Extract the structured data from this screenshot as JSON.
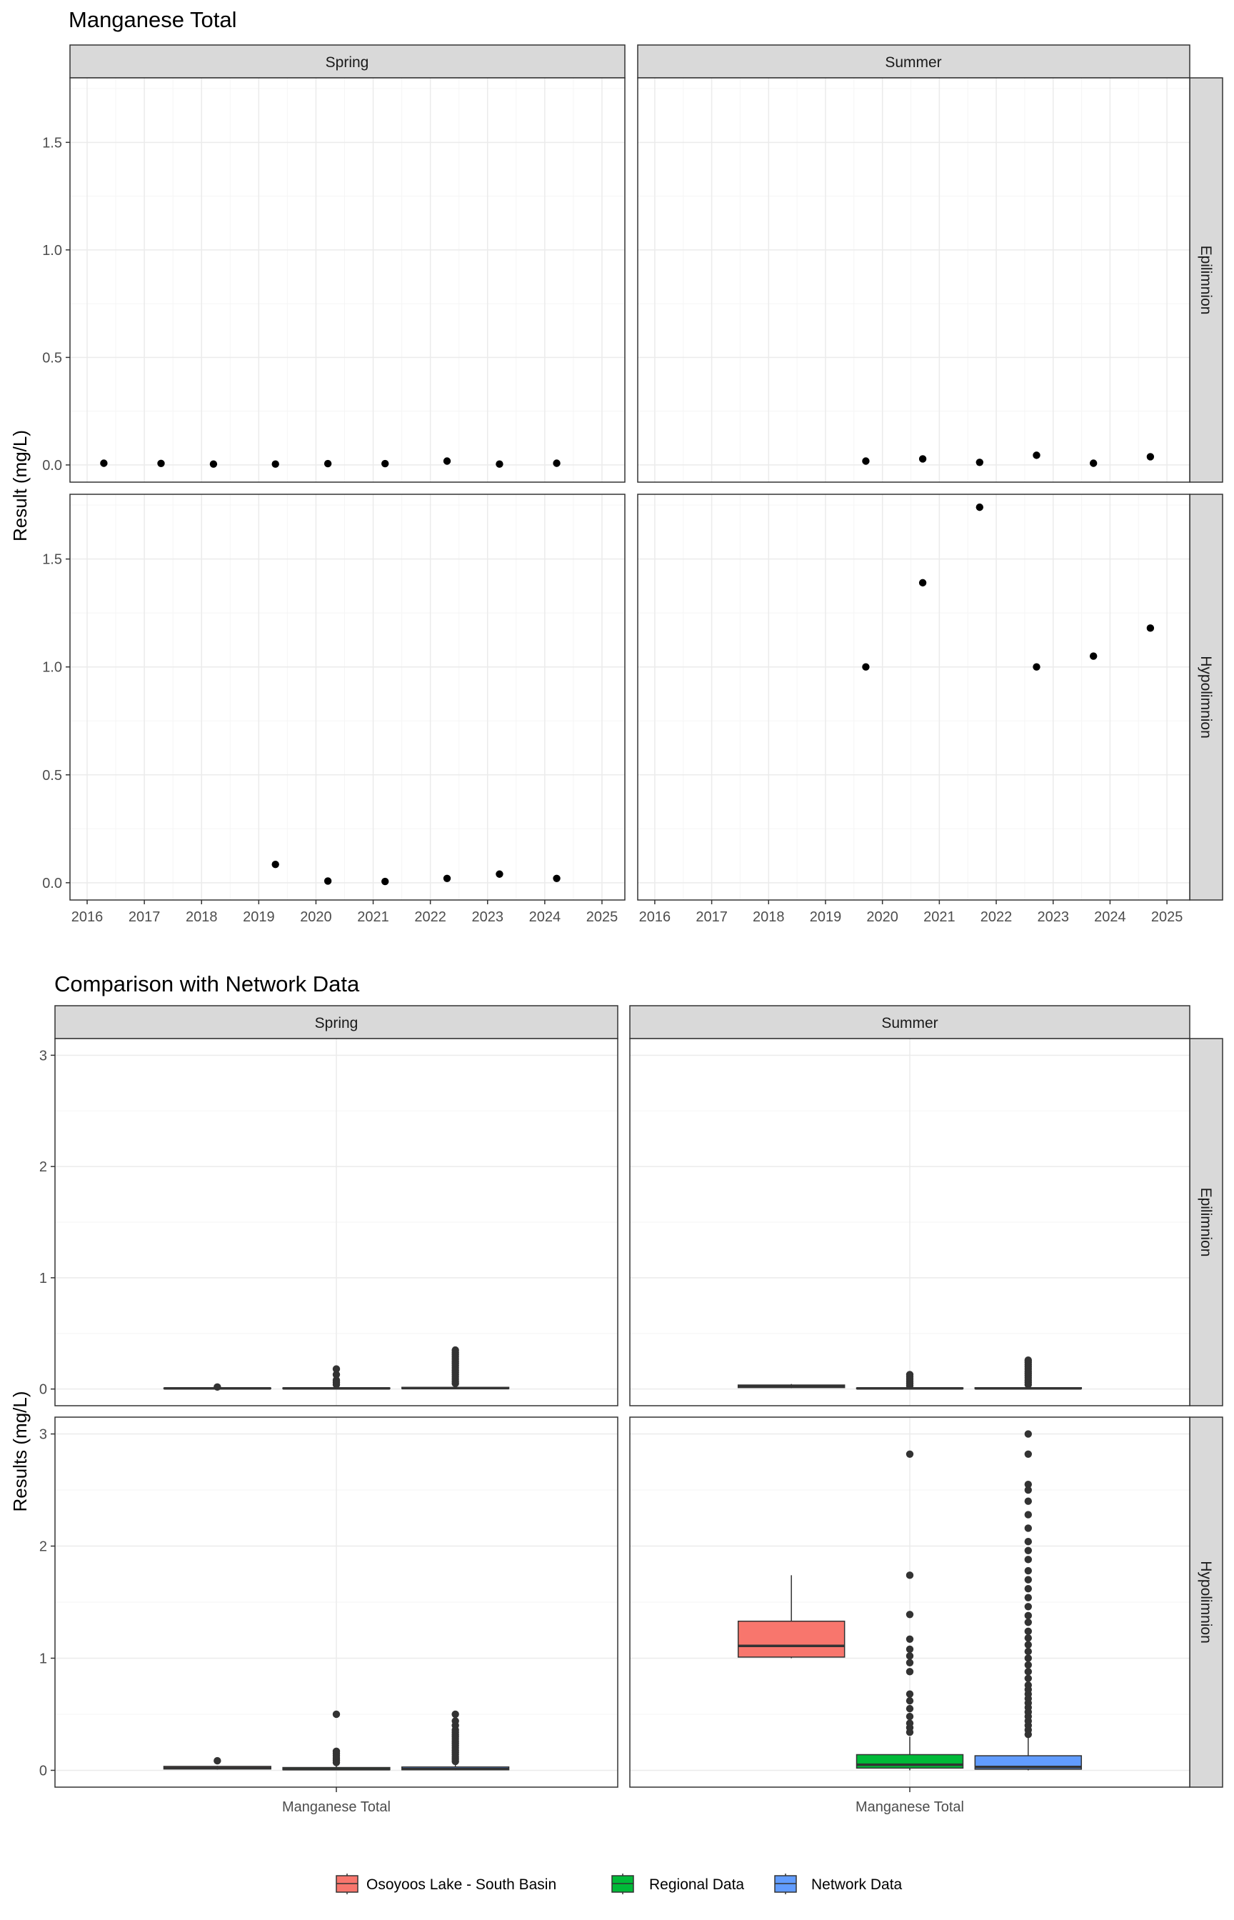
{
  "chart_data": [
    {
      "type": "scatter",
      "title": "Manganese Total",
      "ylabel": "Result (mg/L)",
      "xlim": [
        2015.7,
        2025.4
      ],
      "ylim": [
        -0.08,
        1.8
      ],
      "x_ticks": [
        "2016",
        "2017",
        "2018",
        "2019",
        "2020",
        "2021",
        "2022",
        "2023",
        "2024",
        "2025"
      ],
      "y_ticks": [
        "0.0",
        "0.5",
        "1.0",
        "1.5"
      ],
      "columns": [
        "Spring",
        "Summer"
      ],
      "rows": [
        "Epilimnion",
        "Hypolimnion"
      ],
      "grid": true,
      "panels": [
        {
          "column": "Spring",
          "row": "Epilimnion",
          "x": [
            "2016-04",
            "2017-04",
            "2018-03",
            "2019-04",
            "2020-03",
            "2021-03",
            "2022-04",
            "2023-03",
            "2024-03"
          ],
          "y": [
            0.008,
            0.007,
            0.004,
            0.004,
            0.006,
            0.006,
            0.018,
            0.004,
            0.008
          ]
        },
        {
          "column": "Summer",
          "row": "Epilimnion",
          "x": [
            "2019-09",
            "2020-09",
            "2021-09",
            "2022-09",
            "2023-09",
            "2024-09"
          ],
          "y": [
            0.018,
            0.028,
            0.012,
            0.045,
            0.008,
            0.038
          ]
        },
        {
          "column": "Spring",
          "row": "Hypolimnion",
          "x": [
            "2019-04",
            "2020-03",
            "2021-03",
            "2022-04",
            "2023-03",
            "2024-03"
          ],
          "y": [
            0.085,
            0.008,
            0.006,
            0.02,
            0.04,
            0.02
          ]
        },
        {
          "column": "Summer",
          "row": "Hypolimnion",
          "x": [
            "2019-09",
            "2020-09",
            "2021-09",
            "2022-09",
            "2023-09",
            "2024-09"
          ],
          "y": [
            1.0,
            1.39,
            1.74,
            1.0,
            1.05,
            1.18
          ]
        }
      ]
    },
    {
      "type": "box",
      "title": "Comparison with Network Data",
      "ylabel": "Results (mg/L)",
      "category": "Manganese Total",
      "ylim": [
        -0.15,
        3.15
      ],
      "y_ticks": [
        "0",
        "1",
        "2",
        "3"
      ],
      "columns": [
        "Spring",
        "Summer"
      ],
      "rows": [
        "Epilimnion",
        "Hypolimnion"
      ],
      "legend_position": "bottom",
      "series": [
        {
          "name": "Osoyoos Lake - South Basin",
          "color": "#F8766D"
        },
        {
          "name": "Regional Data",
          "color": "#00BA38"
        },
        {
          "name": "Network Data",
          "color": "#619CFF"
        }
      ],
      "panels": [
        {
          "column": "Spring",
          "row": "Epilimnion",
          "boxes": [
            {
              "series": "Osoyoos Lake - South Basin",
              "min": 0.004,
              "q1": 0.005,
              "median": 0.006,
              "q3": 0.008,
              "max": 0.01,
              "outliers": [
                0.018
              ]
            },
            {
              "series": "Regional Data",
              "min": 0.0,
              "q1": 0.003,
              "median": 0.006,
              "q3": 0.01,
              "max": 0.02,
              "outliers": [
                0.04,
                0.06,
                0.08,
                0.13,
                0.18
              ]
            },
            {
              "series": "Network Data",
              "min": 0.0,
              "q1": 0.004,
              "median": 0.008,
              "q3": 0.015,
              "max": 0.03,
              "outliers": [
                0.05,
                0.07,
                0.09,
                0.11,
                0.13,
                0.15,
                0.17,
                0.19,
                0.21,
                0.23,
                0.25,
                0.27,
                0.29,
                0.31,
                0.33,
                0.35
              ]
            }
          ]
        },
        {
          "column": "Summer",
          "row": "Epilimnion",
          "boxes": [
            {
              "series": "Osoyoos Lake - South Basin",
              "min": 0.008,
              "q1": 0.013,
              "median": 0.023,
              "q3": 0.036,
              "max": 0.045,
              "outliers": []
            },
            {
              "series": "Regional Data",
              "min": 0.0,
              "q1": 0.003,
              "median": 0.006,
              "q3": 0.01,
              "max": 0.02,
              "outliers": [
                0.03,
                0.05,
                0.07,
                0.09,
                0.11,
                0.13
              ]
            },
            {
              "series": "Network Data",
              "min": 0.0,
              "q1": 0.003,
              "median": 0.006,
              "q3": 0.012,
              "max": 0.025,
              "outliers": [
                0.04,
                0.06,
                0.08,
                0.1,
                0.12,
                0.14,
                0.16,
                0.18,
                0.2,
                0.22,
                0.24,
                0.26
              ]
            }
          ]
        },
        {
          "column": "Spring",
          "row": "Hypolimnion",
          "boxes": [
            {
              "series": "Osoyoos Lake - South Basin",
              "min": 0.006,
              "q1": 0.012,
              "median": 0.02,
              "q3": 0.035,
              "max": 0.04,
              "outliers": [
                0.085
              ]
            },
            {
              "series": "Regional Data",
              "min": 0.0,
              "q1": 0.005,
              "median": 0.01,
              "q3": 0.025,
              "max": 0.05,
              "outliers": [
                0.07,
                0.09,
                0.11,
                0.13,
                0.15,
                0.17,
                0.5
              ]
            },
            {
              "series": "Network Data",
              "min": 0.0,
              "q1": 0.005,
              "median": 0.012,
              "q3": 0.03,
              "max": 0.06,
              "outliers": [
                0.08,
                0.1,
                0.12,
                0.14,
                0.16,
                0.18,
                0.2,
                0.22,
                0.24,
                0.26,
                0.28,
                0.3,
                0.32,
                0.34,
                0.36,
                0.4,
                0.44,
                0.5
              ]
            }
          ]
        },
        {
          "column": "Summer",
          "row": "Hypolimnion",
          "boxes": [
            {
              "series": "Osoyoos Lake - South Basin",
              "min": 1.0,
              "q1": 1.01,
              "median": 1.11,
              "q3": 1.33,
              "max": 1.74,
              "outliers": []
            },
            {
              "series": "Regional Data",
              "min": 0.0,
              "q1": 0.02,
              "median": 0.05,
              "q3": 0.14,
              "max": 0.3,
              "outliers": [
                0.34,
                0.38,
                0.42,
                0.48,
                0.55,
                0.62,
                0.68,
                0.88,
                0.96,
                1.02,
                1.08,
                1.17,
                1.39,
                1.74,
                2.82
              ]
            },
            {
              "series": "Network Data",
              "min": 0.0,
              "q1": 0.01,
              "median": 0.03,
              "q3": 0.13,
              "max": 0.3,
              "outliers": [
                0.32,
                0.36,
                0.4,
                0.44,
                0.48,
                0.52,
                0.56,
                0.6,
                0.64,
                0.68,
                0.72,
                0.76,
                0.82,
                0.88,
                0.94,
                1.0,
                1.06,
                1.12,
                1.18,
                1.24,
                1.32,
                1.38,
                1.46,
                1.54,
                1.62,
                1.7,
                1.78,
                1.88,
                1.96,
                2.04,
                2.16,
                2.28,
                2.4,
                2.5,
                2.55,
                2.82,
                3.0
              ]
            }
          ]
        }
      ]
    }
  ]
}
